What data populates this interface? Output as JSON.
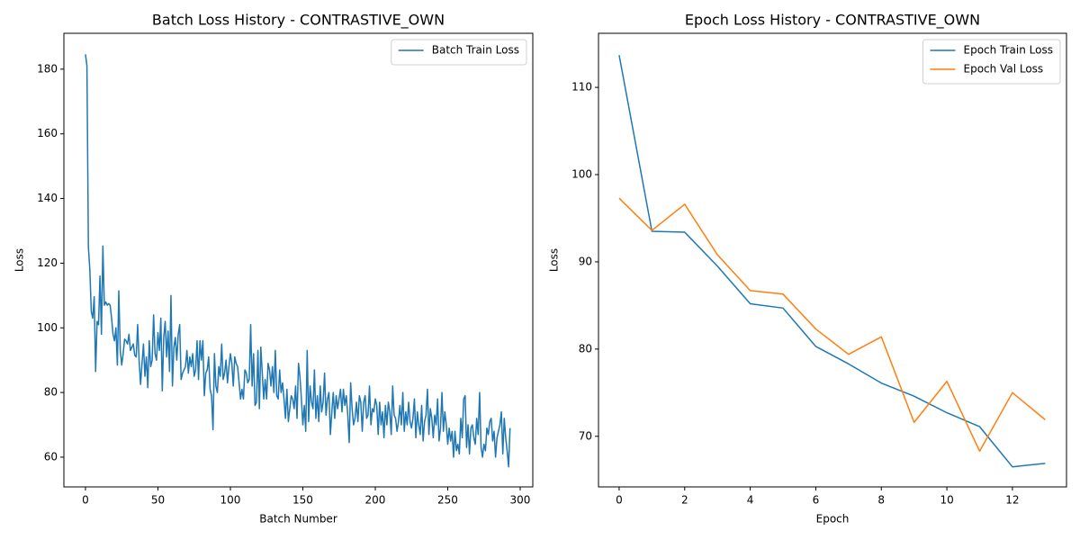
{
  "chart_data": [
    {
      "type": "line",
      "title": "Batch Loss History - CONTRASTIVE_OWN",
      "xlabel": "Batch Number",
      "ylabel": "Loss",
      "series": [
        {
          "name": "Batch Train Loss",
          "color": "#1f77b4",
          "values": [
            184.6,
            181,
            125,
            118,
            105,
            103,
            109.6,
            86.5,
            102,
            101,
            116,
            98,
            125.3,
            107,
            108,
            107,
            107.5,
            107,
            103,
            98,
            96,
            100,
            88.5,
            111.4,
            93,
            88.5,
            92,
            96.5,
            96,
            95,
            98,
            93,
            94,
            95,
            91.5,
            91,
            101,
            90,
            82.5,
            89,
            95,
            85,
            91,
            81.5,
            96,
            88,
            90,
            104,
            92,
            90,
            98.5,
            93,
            103,
            80.5,
            97,
            102,
            91,
            99,
            86.5,
            110,
            82,
            94,
            97,
            90,
            98,
            101,
            84,
            86,
            87,
            88,
            93,
            86,
            91,
            88,
            92,
            85,
            87,
            96,
            84,
            96,
            90,
            96,
            79,
            86,
            87,
            91,
            81,
            79,
            68.5,
            92,
            82,
            80,
            88,
            85,
            95,
            84,
            86,
            90,
            83,
            88,
            92,
            89,
            82,
            91,
            89,
            88,
            83,
            78,
            81,
            78,
            87,
            86,
            83,
            84,
            101,
            82,
            92,
            76,
            77,
            93,
            75,
            94,
            86,
            78,
            84,
            78,
            89,
            87,
            82,
            88,
            80,
            93,
            79,
            78,
            87,
            80,
            83,
            78,
            72,
            81,
            71,
            75,
            79,
            78,
            75,
            82,
            72,
            89,
            85,
            78,
            70,
            76,
            68,
            93,
            71,
            82,
            77,
            75,
            87,
            72,
            79,
            71,
            82,
            74,
            77,
            86,
            73,
            78,
            80,
            67,
            74,
            80,
            72,
            79,
            75,
            78,
            81,
            74,
            81,
            76,
            79,
            73,
            64.5,
            83,
            75,
            70,
            72,
            77,
            71,
            79,
            77,
            68,
            77,
            79,
            72,
            73,
            82,
            70,
            75,
            74,
            78,
            76,
            67,
            77,
            70,
            74,
            66,
            76,
            70,
            77,
            74,
            67,
            82,
            73,
            72,
            68,
            71,
            76,
            70,
            80,
            68,
            74,
            70,
            77,
            71,
            69,
            72,
            78,
            66,
            74,
            70,
            67,
            76,
            65,
            71,
            73,
            81,
            67,
            75,
            72,
            66,
            73,
            70,
            78,
            65,
            69,
            80,
            68,
            74,
            70,
            64,
            69,
            65,
            68,
            60,
            68,
            62,
            64,
            61,
            72,
            66,
            78,
            79,
            63,
            70,
            61,
            69,
            70,
            66,
            64,
            72,
            67,
            80,
            63,
            60,
            64,
            62,
            69,
            67,
            71,
            72,
            65,
            68,
            60,
            66,
            68,
            70,
            74,
            61,
            72,
            66,
            62,
            57,
            69
          ]
        }
      ],
      "xlim": [
        -14.9,
        308.7
      ],
      "xticks": [
        0,
        50,
        100,
        150,
        200,
        250,
        300
      ],
      "ylim": [
        50.8,
        191.1
      ],
      "yticks": [
        60,
        80,
        100,
        120,
        140,
        160,
        180
      ],
      "legend": "upper right"
    },
    {
      "type": "line",
      "title": "Epoch Loss History - CONTRASTIVE_OWN",
      "xlabel": "Epoch",
      "ylabel": "Loss",
      "x": [
        0,
        1,
        2,
        3,
        4,
        5,
        6,
        7,
        8,
        9,
        10,
        11,
        12,
        13
      ],
      "series": [
        {
          "name": "Epoch Train Loss",
          "color": "#1f77b4",
          "values": [
            113.7,
            93.5,
            93.4,
            89.5,
            85.2,
            84.7,
            80.3,
            78.3,
            76.1,
            74.6,
            72.7,
            71.1,
            66.5,
            66.9
          ]
        },
        {
          "name": "Epoch Val Loss",
          "color": "#ff7f0e",
          "values": [
            97.3,
            93.6,
            96.6,
            90.8,
            86.7,
            86.3,
            82.3,
            79.4,
            81.4,
            71.6,
            76.3,
            68.3,
            75.0,
            71.9
          ]
        }
      ],
      "xlim": [
        -0.63,
        13.65
      ],
      "xticks": [
        0,
        2,
        4,
        6,
        8,
        10,
        12
      ],
      "ylim": [
        64.2,
        116.2
      ],
      "yticks": [
        70,
        80,
        90,
        100,
        110
      ],
      "legend": "upper right"
    }
  ]
}
